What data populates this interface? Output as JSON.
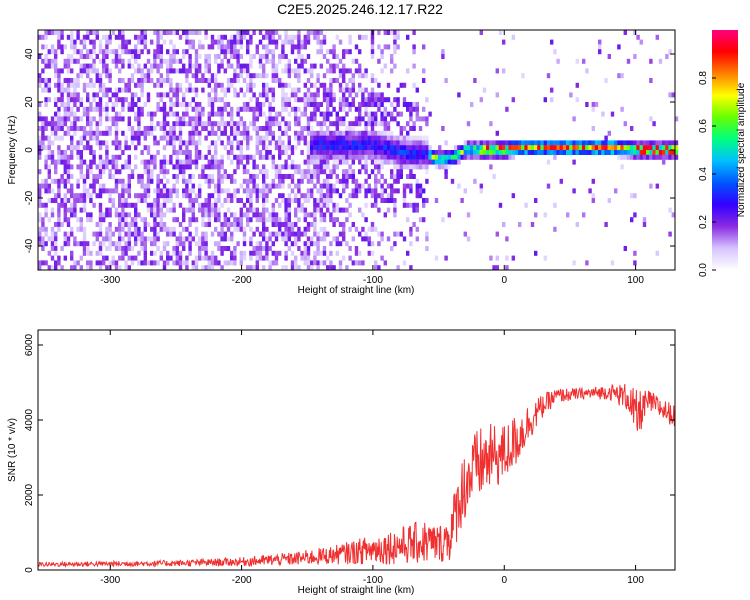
{
  "title": "C2E5.2025.246.12.17.R22",
  "chart_data": [
    {
      "type": "heatmap",
      "name": "spectrogram",
      "xlabel": "Height of straight line (km)",
      "ylabel": "Frequency (Hz)",
      "xlim": [
        -355,
        130
      ],
      "ylim": [
        -50,
        50
      ],
      "xticks": [
        "-300",
        "-200",
        "-100",
        "0",
        "100"
      ],
      "yticks": [
        "40",
        "20",
        "0",
        "-20",
        "-40"
      ],
      "xtick_values": [
        -300,
        -200,
        -100,
        0,
        100
      ],
      "ytick_values": [
        40,
        20,
        0,
        -20,
        -40
      ],
      "colorbar": {
        "label": "Normalized spectral amplitude",
        "ticks": [
          "0.0",
          "0.2",
          "0.4",
          "0.6",
          "0.8"
        ],
        "tick_values": [
          0.0,
          0.2,
          0.4,
          0.6,
          0.8
        ],
        "range": [
          0,
          1
        ],
        "colormap": [
          "#ffffff",
          "#d6c4ff",
          "#8a2be2",
          "#3300ff",
          "#0055ff",
          "#00c0ff",
          "#00ff80",
          "#66ff00",
          "#ffff00",
          "#ff8000",
          "#ff0000",
          "#ff0080"
        ]
      },
      "signal_track": {
        "description_points_x": [
          -130,
          -100,
          -80,
          -60,
          -50,
          -40,
          -30,
          0,
          10,
          50,
          80,
          100,
          130
        ],
        "center_freq": [
          3,
          3,
          0,
          -1,
          -3,
          -2,
          1,
          1,
          2,
          2,
          2,
          1,
          1
        ]
      }
    },
    {
      "type": "line",
      "name": "snr",
      "xlabel": "Height of straight line (km)",
      "ylabel": "SNR (10 * v/v)",
      "xlim": [
        -355,
        130
      ],
      "ylim": [
        0,
        6400
      ],
      "xticks": [
        "-300",
        "-200",
        "-100",
        "0",
        "100"
      ],
      "yticks": [
        "6000",
        "4000",
        "2000",
        "0"
      ],
      "xtick_values": [
        -300,
        -200,
        -100,
        0,
        100
      ],
      "ytick_values": [
        6000,
        4000,
        2000,
        0
      ],
      "color": "#f03030",
      "envelope_x": [
        -355,
        -250,
        -200,
        -160,
        -130,
        -100,
        -80,
        -60,
        -50,
        -45,
        -40,
        -35,
        -30,
        -20,
        -10,
        0,
        10,
        20,
        30,
        40,
        60,
        80,
        95,
        100,
        105,
        110,
        120,
        130
      ],
      "envelope_y": [
        150,
        180,
        220,
        300,
        400,
        550,
        650,
        750,
        700,
        800,
        1000,
        1800,
        2300,
        2800,
        3000,
        3100,
        3500,
        4000,
        4400,
        4650,
        4700,
        4750,
        4600,
        4000,
        4300,
        4500,
        4300,
        4100
      ],
      "noise_y": [
        60,
        80,
        120,
        180,
        250,
        400,
        500,
        600,
        500,
        600,
        800,
        900,
        1000,
        1000,
        900,
        800,
        700,
        500,
        300,
        200,
        150,
        200,
        400,
        800,
        500,
        300,
        300,
        300
      ]
    }
  ]
}
